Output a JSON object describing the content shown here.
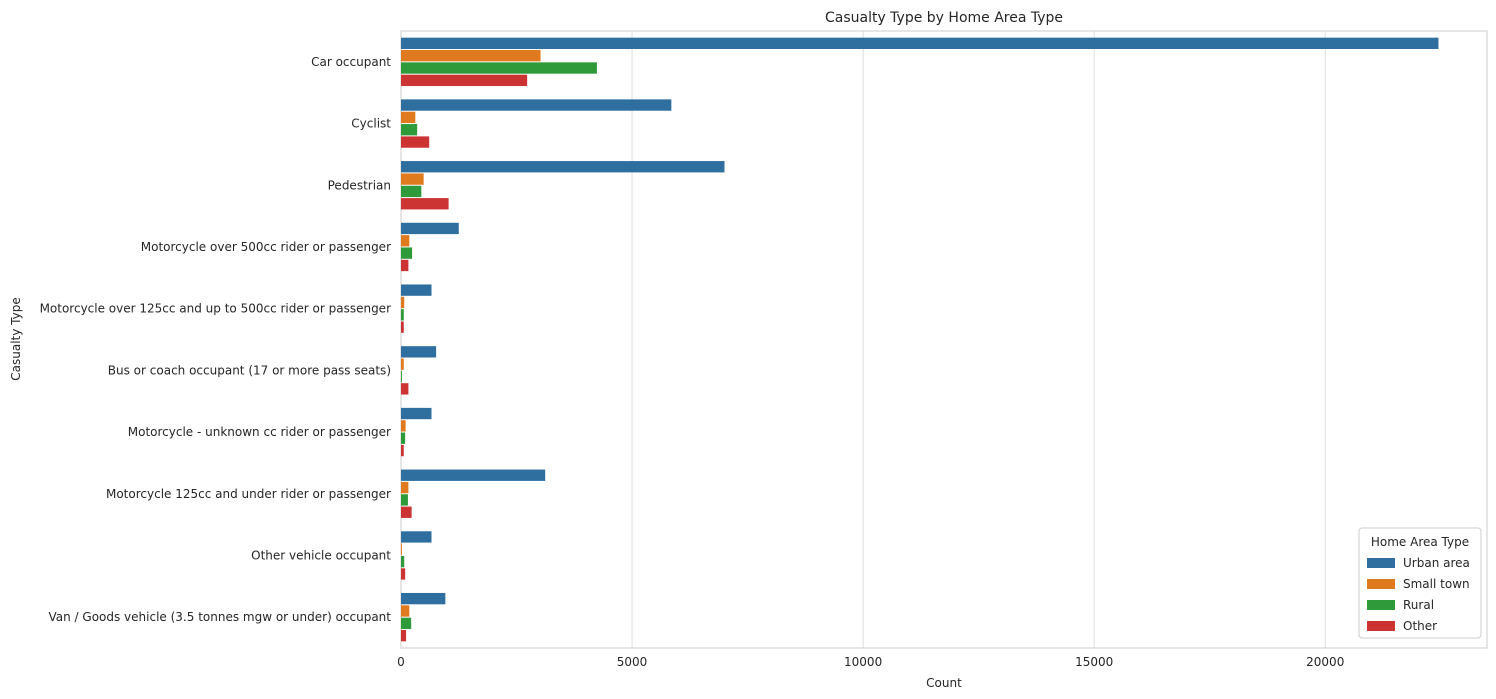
{
  "chart_data": {
    "type": "bar",
    "orientation": "horizontal",
    "title": "Casualty Type by Home Area Type",
    "xlabel": "Count",
    "ylabel": "Casualty Type",
    "xlim": [
      0,
      23500
    ],
    "xticks": [
      0,
      5000,
      10000,
      15000,
      20000
    ],
    "grid": "x",
    "legend": {
      "title": "Home Area Type",
      "placement": "bottom-right"
    },
    "categories": [
      "Car occupant",
      "Cyclist",
      "Pedestrian",
      "Motorcycle over 500cc rider or passenger",
      "Motorcycle over 125cc and up to 500cc rider or  passenger",
      "Bus or coach occupant (17 or more pass seats)",
      "Motorcycle - unknown cc rider or passenger",
      "Motorcycle 125cc and under rider or passenger",
      "Other vehicle occupant",
      "Van / Goods vehicle (3.5 tonnes mgw or under) occupant"
    ],
    "series": [
      {
        "name": "Urban area",
        "color": "#2f6f9f",
        "values": [
          22450,
          5850,
          7000,
          1250,
          660,
          760,
          660,
          3120,
          660,
          960
        ]
      },
      {
        "name": "Small town",
        "color": "#e07a1f",
        "values": [
          3020,
          310,
          490,
          180,
          70,
          60,
          100,
          160,
          20,
          180
        ]
      },
      {
        "name": "Rural",
        "color": "#2e9a3a",
        "values": [
          4240,
          350,
          440,
          240,
          60,
          20,
          90,
          150,
          70,
          220
        ]
      },
      {
        "name": "Other",
        "color": "#cc3333",
        "values": [
          2730,
          610,
          1030,
          160,
          60,
          160,
          60,
          230,
          90,
          110
        ]
      }
    ]
  }
}
